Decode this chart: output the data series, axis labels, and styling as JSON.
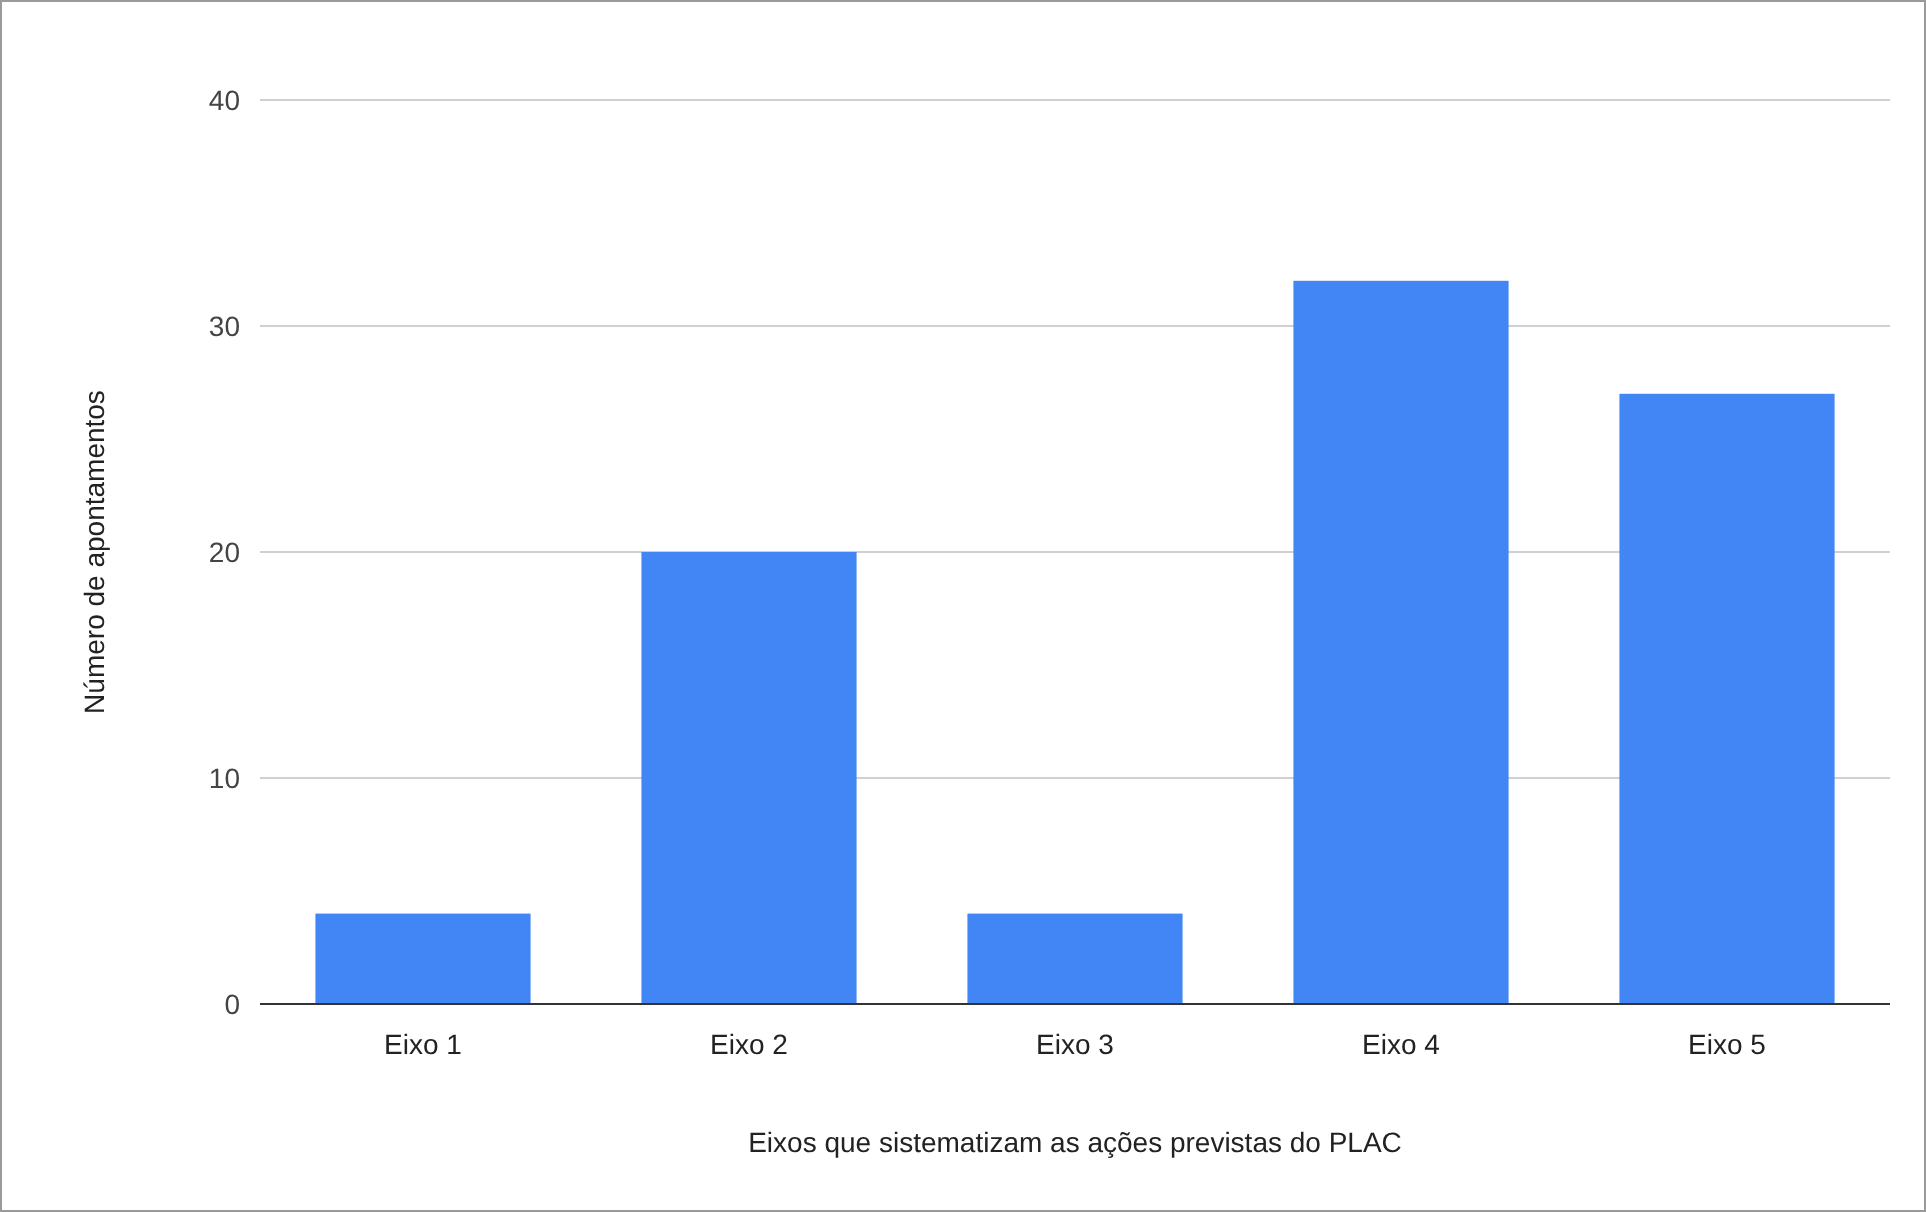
{
  "chart_data": {
    "type": "bar",
    "xlabel": "Eixos que sistematizam as ações previstas do PLAC",
    "ylabel": "Número de apontamentos",
    "categories": [
      "Eixo 1",
      "Eixo 2",
      "Eixo 3",
      "Eixo 4",
      "Eixo 5"
    ],
    "values": [
      4,
      20,
      4,
      32,
      27
    ],
    "color": "#4285f4",
    "ylim": [
      0,
      40
    ],
    "yticks": [
      0,
      10,
      20,
      30,
      40
    ],
    "grid": "y"
  }
}
